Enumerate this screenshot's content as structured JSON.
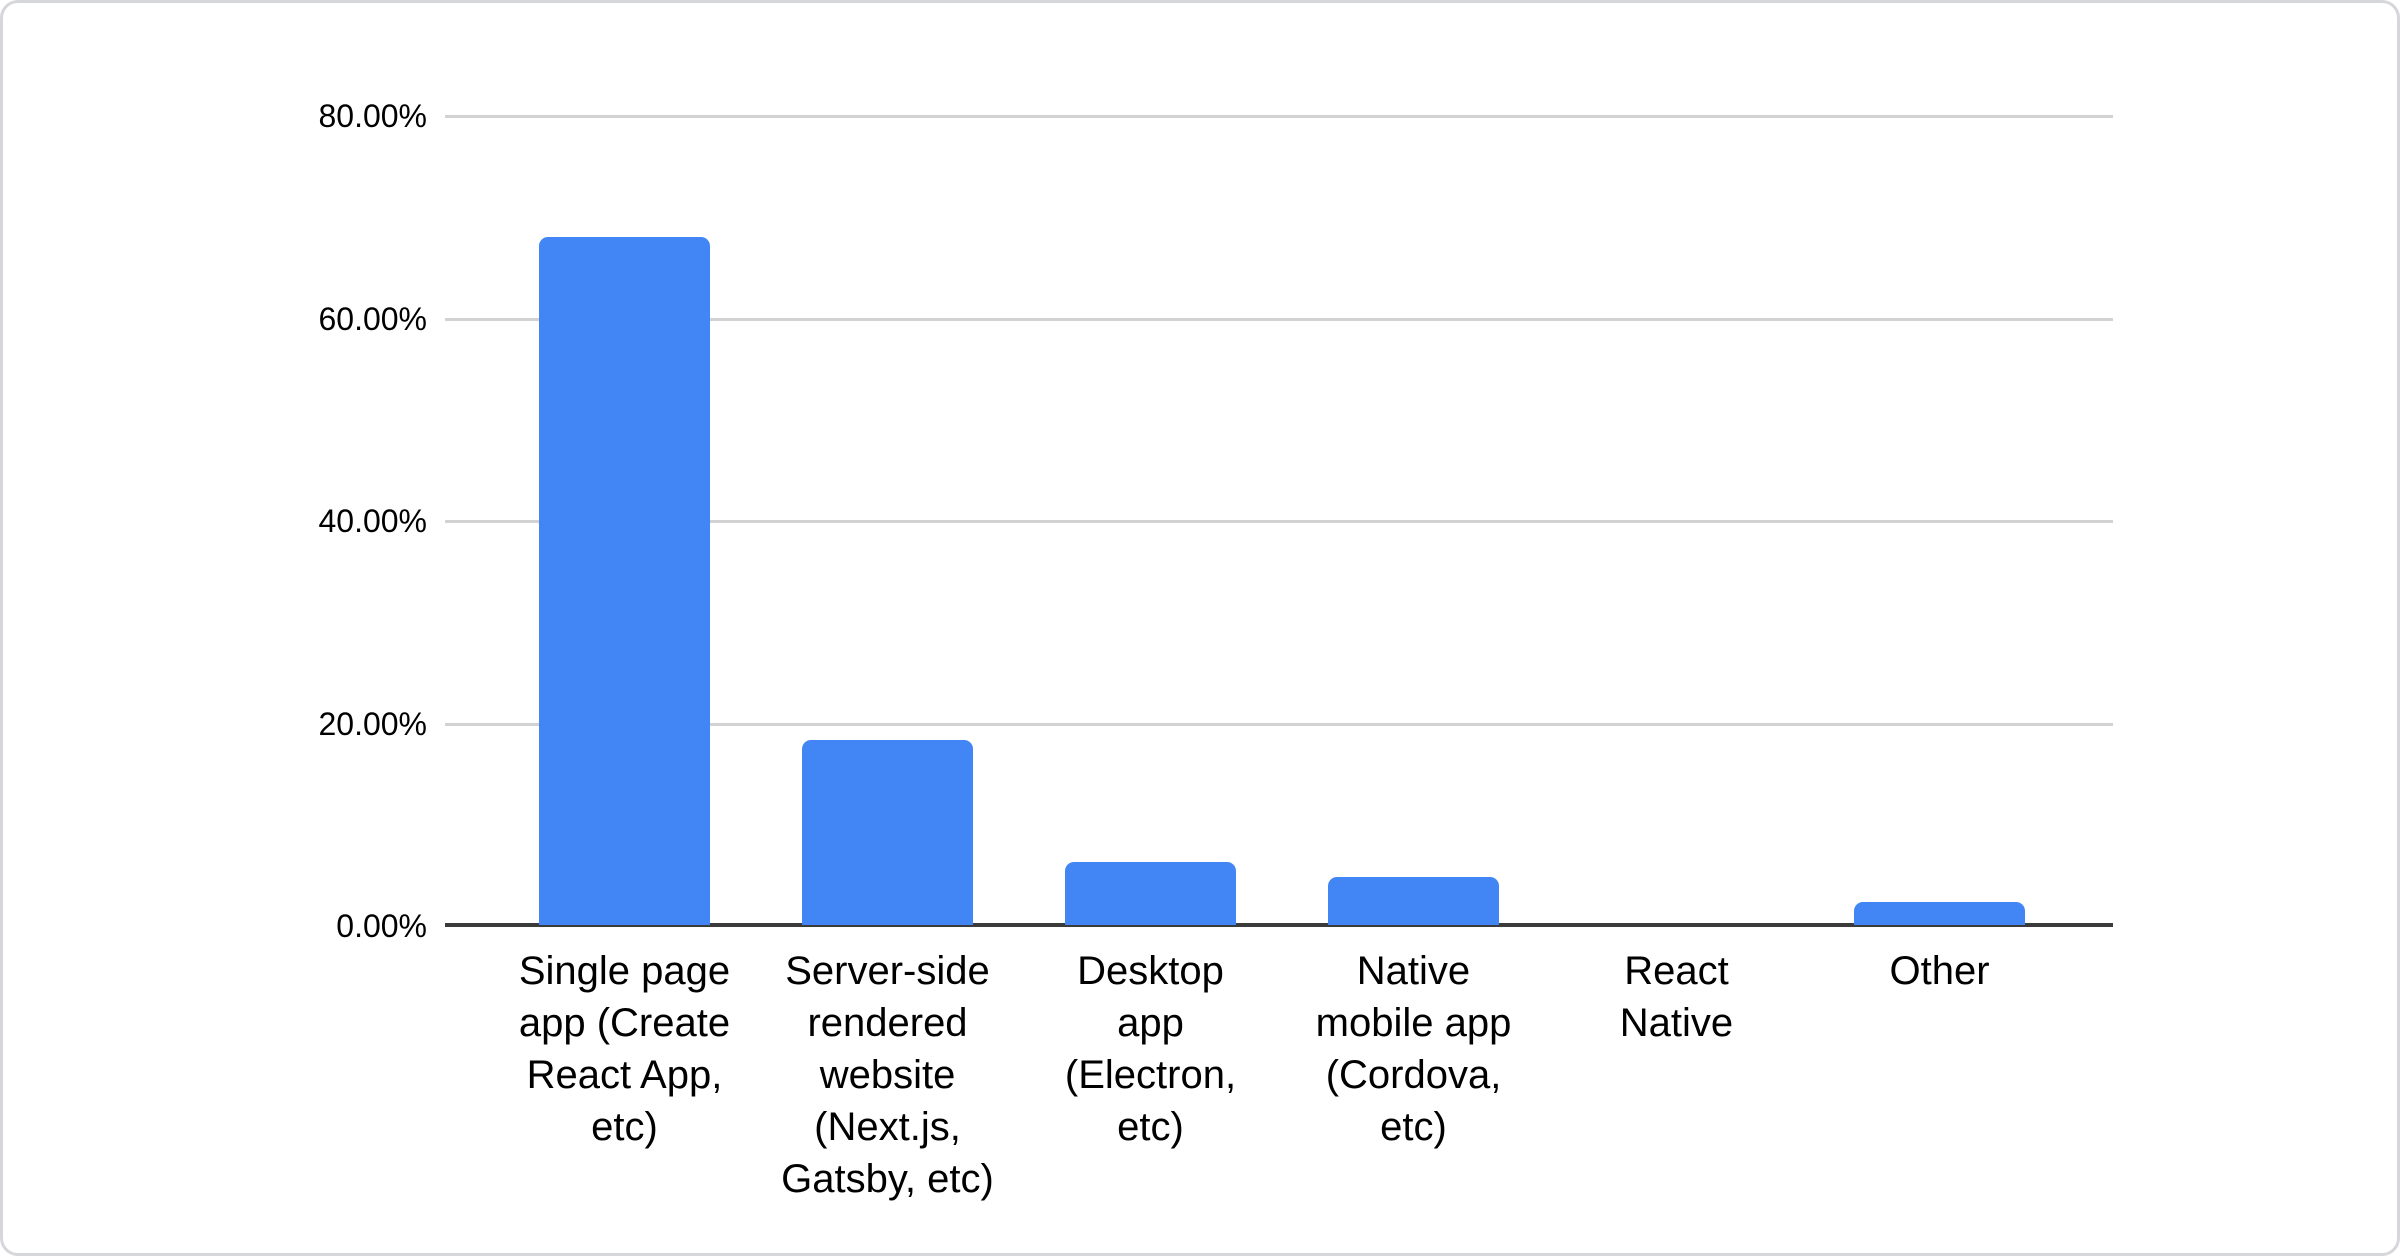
{
  "colors": {
    "bar": "#4285f4",
    "gridline": "#d2d2d2",
    "axis_line": "#3b3b3b",
    "card_border": "#d6d7db",
    "background": "#ffffff",
    "text": "#000000"
  },
  "chart_data": {
    "type": "bar",
    "title": "",
    "xlabel": "",
    "ylabel": "",
    "categories": [
      "Single page app (Create React App, etc)",
      "Server-side rendered website (Next.js, Gatsby, etc)",
      "Desktop app (Electron, etc)",
      "Native mobile app (Cordova, etc)",
      "React Native",
      "Other"
    ],
    "categories_wrapped": [
      "Single page\napp (Create\nReact App,\netc)",
      "Server-side\nrendered\nwebsite\n(Next.js,\nGatsby, etc)",
      "Desktop\napp\n(Electron,\netc)",
      "Native\nmobile app\n(Cordova,\netc)",
      "React\nNative",
      "Other"
    ],
    "values": [
      68.0,
      18.3,
      6.2,
      4.7,
      0,
      2.3
    ],
    "ylim": [
      0,
      80
    ],
    "ytick_labels": [
      "80.00%",
      "60.00%",
      "40.00%",
      "20.00%",
      "0.00%"
    ],
    "grid": true,
    "legend": "none",
    "bar_color": "#4285f4"
  }
}
